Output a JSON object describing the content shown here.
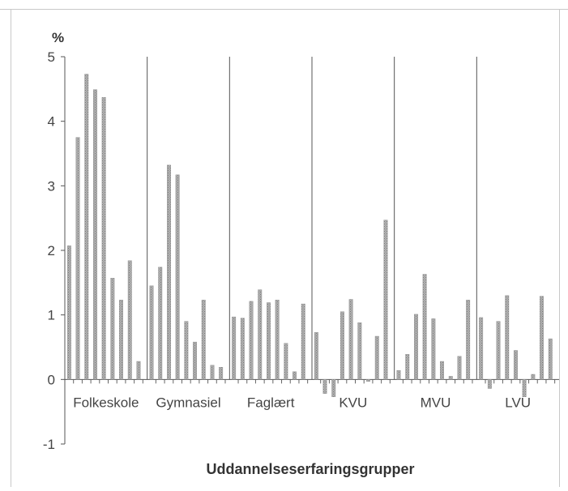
{
  "chart_data": {
    "type": "bar",
    "ylabel": "%",
    "xlabel": "Uddannelseserfaringsgrupper",
    "ylim": [
      -1,
      5
    ],
    "yticks": [
      -1,
      0,
      1,
      2,
      3,
      4,
      5
    ],
    "grid": false,
    "bar_color": "#a8a8a8",
    "groups": [
      {
        "label": "Folkeskole",
        "values": [
          2.07,
          3.75,
          4.73,
          4.49,
          4.37,
          1.57,
          1.23,
          1.84,
          0.28
        ]
      },
      {
        "label": "Gymnasiel",
        "values": [
          1.45,
          1.74,
          3.32,
          3.17,
          0.9,
          0.58,
          1.23,
          0.22,
          0.19
        ]
      },
      {
        "label": "Faglært",
        "values": [
          0.97,
          0.95,
          1.21,
          1.39,
          1.19,
          1.23,
          0.56,
          0.12,
          1.17
        ]
      },
      {
        "label": "KVU",
        "values": [
          0.73,
          -0.22,
          -0.27,
          1.05,
          1.24,
          0.88,
          -0.03,
          0.67,
          2.47
        ]
      },
      {
        "label": "MVU",
        "values": [
          0.14,
          0.39,
          1.01,
          1.63,
          0.94,
          0.28,
          0.05,
          0.36,
          1.23
        ]
      },
      {
        "label": "LVU",
        "values": [
          0.96,
          -0.14,
          0.9,
          1.3,
          0.45,
          -0.27,
          0.08,
          1.29,
          0.63
        ]
      }
    ]
  }
}
